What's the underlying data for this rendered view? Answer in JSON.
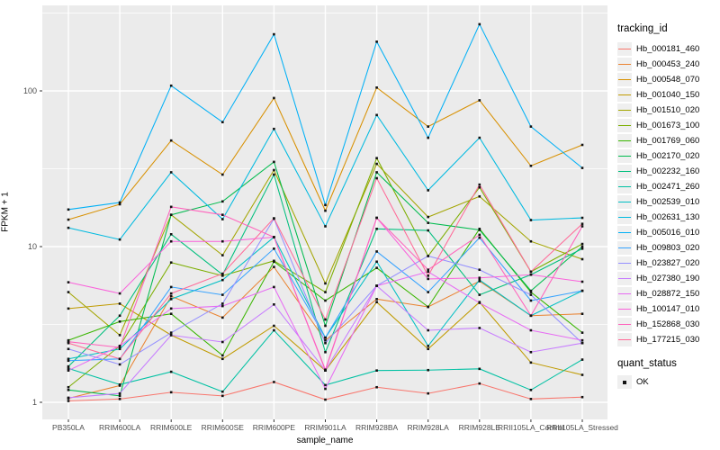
{
  "figure": {
    "panel_bg": "#ebebeb",
    "grid_color": "#ffffff",
    "tick_label_color": "#4d4d4d",
    "point_color": "#111111",
    "legend_key_bg": "#efefef"
  },
  "chart_data": {
    "type": "line",
    "title": "",
    "xlabel": "sample_name",
    "ylabel": "FPKM + 1",
    "y_scale": "log10",
    "ylim": [
      1,
      355
    ],
    "yticks": [
      "1",
      "10",
      "100"
    ],
    "ytick_values": [
      1,
      10,
      100
    ],
    "y_minor_values": [
      3.1623,
      31.623,
      316.23
    ],
    "legend_title": "tracking_id",
    "legend2_title": "quant_status",
    "legend2_entry": "OK",
    "samples": [
      "PB350LA",
      "RRIM600LA",
      "RRIM600LE",
      "RRIM600SE",
      "RRIM600PE",
      "RRIM901LA",
      "RRIM928BA",
      "RRIM928LA",
      "RRIM928LE",
      "RRII105LA_Control",
      "RRII105LA_Stressed"
    ],
    "series": [
      {
        "name": "Hb_000181_460",
        "color": "#F8766D",
        "values": [
          1.02,
          1.05,
          1.16,
          1.1,
          1.35,
          1.04,
          1.25,
          1.14,
          1.32,
          1.05,
          1.08
        ]
      },
      {
        "name": "Hb_000453_240",
        "color": "#EA8331",
        "values": [
          1.06,
          1.28,
          4.8,
          3.5,
          7.4,
          2.5,
          4.6,
          4.1,
          6.0,
          3.6,
          3.7
        ]
      },
      {
        "name": "Hb_000548_070",
        "color": "#D89000",
        "values": [
          14.9,
          18.7,
          48,
          29,
          90,
          17,
          105,
          59,
          87,
          33,
          45
        ]
      },
      {
        "name": "Hb_001040_150",
        "color": "#C09B00",
        "values": [
          4.0,
          4.3,
          2.7,
          1.9,
          3.1,
          1.6,
          4.4,
          2.2,
          4.4,
          1.8,
          1.5
        ]
      },
      {
        "name": "Hb_001510_020",
        "color": "#A3A500",
        "values": [
          5.1,
          2.7,
          16,
          8.8,
          31,
          5.8,
          34,
          15.5,
          21,
          10.8,
          8.3
        ]
      },
      {
        "name": "Hb_001673_100",
        "color": "#7CAE00",
        "values": [
          1.25,
          2.3,
          7.9,
          6.5,
          8.1,
          5.1,
          37,
          8.7,
          24,
          6.9,
          10.4
        ]
      },
      {
        "name": "Hb_001769_060",
        "color": "#39B600",
        "values": [
          2.5,
          3.3,
          3.7,
          2.0,
          8.0,
          4.5,
          7.3,
          4.1,
          13,
          5.1,
          2.8
        ]
      },
      {
        "name": "Hb_002170_020",
        "color": "#00BB4E",
        "values": [
          1.2,
          1.1,
          16,
          19.5,
          35,
          3.1,
          30,
          14.2,
          12.8,
          5.2,
          10.0
        ]
      },
      {
        "name": "Hb_002232_160",
        "color": "#00BF7D",
        "values": [
          1.7,
          3.6,
          12,
          6.6,
          29,
          2.1,
          13,
          12.7,
          4.9,
          6.6,
          9.7
        ]
      },
      {
        "name": "Hb_002471_260",
        "color": "#00C1A3",
        "values": [
          1.65,
          1.3,
          1.57,
          1.17,
          2.9,
          1.29,
          1.6,
          1.61,
          1.64,
          1.2,
          1.88
        ]
      },
      {
        "name": "Hb_002539_010",
        "color": "#00BFC4",
        "values": [
          1.9,
          2.2,
          4.6,
          6.1,
          11.5,
          2.6,
          8.0,
          2.3,
          6.1,
          3.6,
          5.2
        ]
      },
      {
        "name": "Hb_002631_130",
        "color": "#00BAE0",
        "values": [
          13.2,
          11.1,
          30,
          15,
          57,
          13.5,
          70,
          23,
          50,
          14.8,
          15.3
        ]
      },
      {
        "name": "Hb_005016_010",
        "color": "#00B0F6",
        "values": [
          17.3,
          19.2,
          108,
          63,
          231,
          18.5,
          207,
          50,
          268,
          59,
          32
        ]
      },
      {
        "name": "Hb_009803_020",
        "color": "#35A2FF",
        "values": [
          1.85,
          1.9,
          5.5,
          4.9,
          9.7,
          2.6,
          9.3,
          5.1,
          11.4,
          4.5,
          5.2
        ]
      },
      {
        "name": "Hb_023827_020",
        "color": "#9590FF",
        "values": [
          2.2,
          1.75,
          2.8,
          4.3,
          15.1,
          2.4,
          5.6,
          8.7,
          7.1,
          4.9,
          2.4
        ]
      },
      {
        "name": "Hb_027380_190",
        "color": "#C77CFF",
        "values": [
          1.07,
          1.14,
          2.7,
          2.44,
          4.25,
          1.6,
          5.6,
          2.9,
          3.0,
          2.1,
          2.4
        ]
      },
      {
        "name": "Hb_028872_150",
        "color": "#E76BF3",
        "values": [
          1.6,
          2.3,
          4.0,
          4.15,
          5.5,
          1.22,
          5.6,
          6.9,
          4.35,
          2.9,
          2.5
        ]
      },
      {
        "name": "Hb_100147_010",
        "color": "#FA62DB",
        "values": [
          5.9,
          5.0,
          10.8,
          10.8,
          11.5,
          1.6,
          15.3,
          6.2,
          6.3,
          6.6,
          5.95
        ]
      },
      {
        "name": "Hb_152868_030",
        "color": "#FF62BC",
        "values": [
          2.45,
          2.25,
          18,
          16,
          11.5,
          1.62,
          15.3,
          7.1,
          11.9,
          3.6,
          13.5
        ]
      },
      {
        "name": "Hb_177215_030",
        "color": "#FF6A98",
        "values": [
          2.4,
          1.9,
          5.0,
          6.7,
          15.2,
          3.4,
          27.5,
          6.5,
          25,
          6.9,
          14
        ]
      }
    ],
    "legend_position": "right",
    "grid": true
  }
}
